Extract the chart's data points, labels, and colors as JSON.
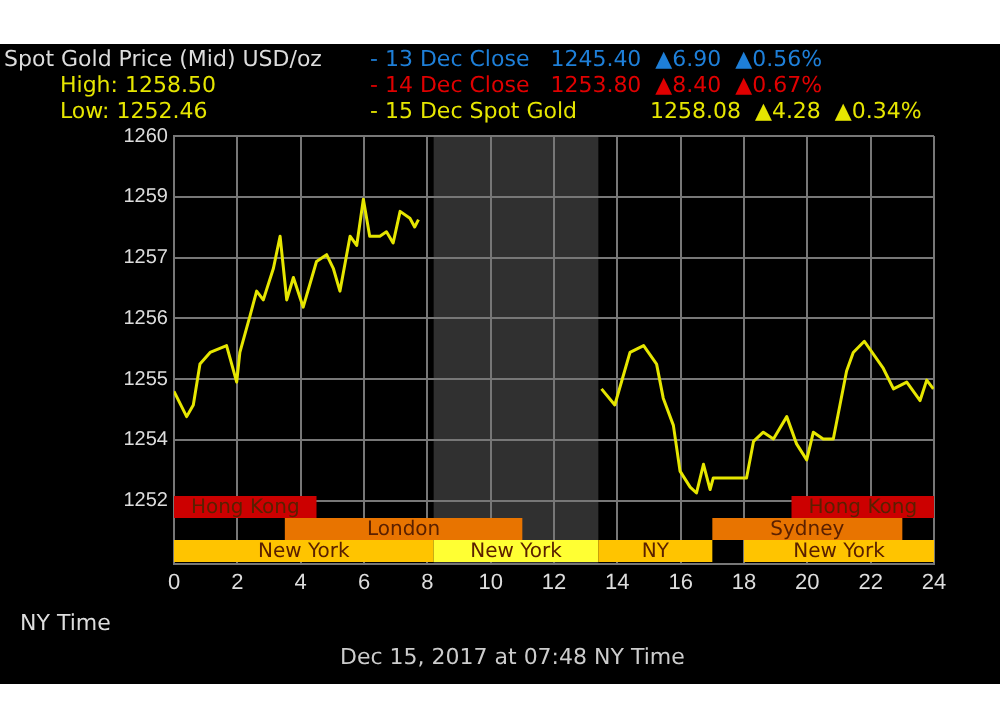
{
  "chart_data": {
    "type": "line",
    "title": "Spot Gold Price (Mid) USD/oz",
    "xlabel": "NY Time",
    "annotations": [
      "High: 1258.50",
      "Low: 1252.46",
      "- 13 Dec Close   1245.40  ▲6.90  ▲0.56%",
      "- 14 Dec Close   1253.80  ▲8.40  ▲0.67%",
      "1258.08  ▲4.28  ▲0.34%",
      "Dec 15, 2017 at 07:48 NY Time"
    ],
    "xlim": [
      0,
      24
    ],
    "xticks": [
      0,
      2,
      4,
      6,
      8,
      10,
      12,
      14,
      16,
      18,
      20,
      22,
      24
    ],
    "ylim": [
      1251.0,
      1259.8
    ],
    "yticks": [
      {
        "value": 1259.8,
        "label": "1260"
      },
      {
        "value": 1258.55,
        "label": "1259"
      },
      {
        "value": 1257.3,
        "label": "1257"
      },
      {
        "value": 1256.05,
        "label": "1256"
      },
      {
        "value": 1254.8,
        "label": "1255"
      },
      {
        "value": 1253.55,
        "label": "1254"
      },
      {
        "value": 1252.3,
        "label": "1252"
      }
    ],
    "grid": true,
    "legend": "top",
    "marker": "none",
    "bands": [
      {
        "axis": "x",
        "from": 8.2,
        "to": 13.4,
        "color": "#303030"
      },
      {
        "axis": "x",
        "from": 0,
        "to": 8.2,
        "label": "New York",
        "color": "#ffc400"
      },
      {
        "axis": "x",
        "from": 8.2,
        "to": 13.4,
        "label": "New York",
        "color": "#ffff33"
      },
      {
        "axis": "x",
        "from": 13.4,
        "to": 17,
        "label": "NY",
        "color": "#ffc400"
      },
      {
        "axis": "x",
        "from": 18,
        "to": 24,
        "label": "New York",
        "color": "#ffc400"
      },
      {
        "axis": "x",
        "from": 3.5,
        "to": 11,
        "label": "London",
        "color": "#e87400"
      },
      {
        "axis": "x",
        "from": 17,
        "to": 23,
        "label": "Sydney",
        "color": "#e87400"
      },
      {
        "axis": "x",
        "from": 0,
        "to": 4.5,
        "label": "Hong Kong",
        "color": "#cc0000"
      },
      {
        "axis": "x",
        "from": 19.5,
        "to": 24,
        "label": "Hong Kong",
        "color": "#cc0000"
      }
    ],
    "series": [
      {
        "name": "- 15 Dec Spot Gold",
        "color": "#e6e600",
        "x": [
          0,
          0.4,
          0.61,
          0.82,
          1.14,
          1.66,
          1.98,
          2.08,
          2.4,
          2.61,
          2.82,
          3.14,
          3.35,
          3.56,
          3.77,
          4.08,
          4.5,
          4.82,
          5.03,
          5.24,
          5.56,
          5.77,
          5.98,
          6.18,
          6.5,
          6.71,
          6.92,
          7.14,
          7.45,
          7.6,
          7.72,
          10,
          13.5,
          13.92,
          14.4,
          14.83,
          15.24,
          15.45,
          15.77,
          15.98,
          16.3,
          16.5,
          16.72,
          16.93,
          17.03,
          18.08,
          18.3,
          18.61,
          18.93,
          19.35,
          19.66,
          19.98,
          20.19,
          20.5,
          20.82,
          21.03,
          21.24,
          21.45,
          21.8,
          22.4,
          22.72,
          23.14,
          23.56,
          23.77,
          23.98
        ],
        "values": [
          1254.55,
          1254.03,
          1254.27,
          1255.11,
          1255.35,
          1255.49,
          1254.74,
          1255.35,
          1256.1,
          1256.61,
          1256.43,
          1257.08,
          1257.74,
          1256.43,
          1256.89,
          1256.28,
          1257.22,
          1257.36,
          1257.08,
          1256.61,
          1257.74,
          1257.55,
          1258.5,
          1257.74,
          1257.74,
          1257.83,
          1257.6,
          1258.25,
          1258.11,
          1257.93,
          1258.08,
          null,
          1254.6,
          1254.27,
          1255.35,
          1255.49,
          1255.11,
          1254.41,
          1253.85,
          1252.91,
          1252.58,
          1252.46,
          1253.05,
          1252.53,
          1252.77,
          1252.77,
          1253.52,
          1253.71,
          1253.57,
          1254.03,
          1253.47,
          1253.14,
          1253.71,
          1253.57,
          1253.57,
          1254.27,
          1254.97,
          1255.35,
          1255.58,
          1255.02,
          1254.6,
          1254.74,
          1254.36,
          1254.78,
          1254.6
        ]
      }
    ]
  }
}
